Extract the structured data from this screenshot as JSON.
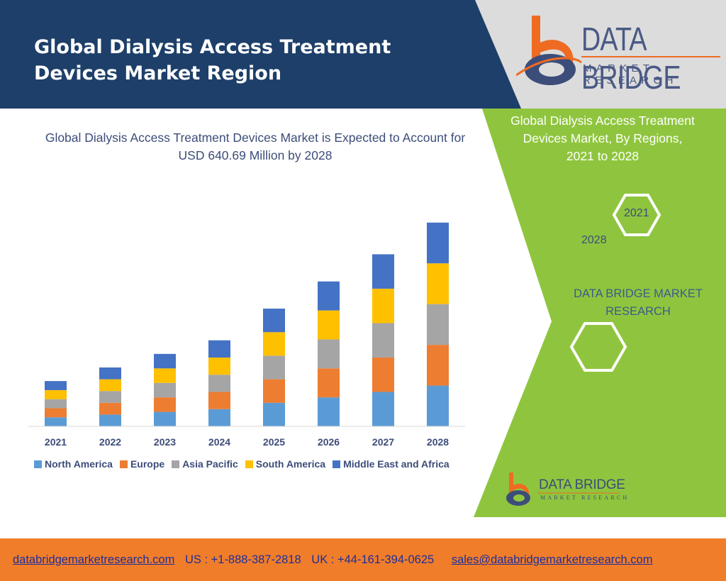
{
  "header": {
    "title_line1": "Global Dialysis Access Treatment",
    "title_line2": "Devices Market Region",
    "brand_name": "DATA BRIDGE",
    "brand_tagline": "MARKET RESEARCH"
  },
  "colors": {
    "header_navy": "#1d3f69",
    "panel_green": "#8fc53e",
    "footer_orange": "#f07d2a",
    "brand_orange": "#ef6b22",
    "brand_navy": "#3d4d7a"
  },
  "chart_data": {
    "type": "bar",
    "stacked": true,
    "title": "Global Dialysis Access Treatment Devices Market is Expected to Account for USD 640.69 Million by 2028",
    "xlabel": "",
    "ylabel": "",
    "grid": false,
    "legend_position": "bottom",
    "categories": [
      "2021",
      "2022",
      "2023",
      "2024",
      "2025",
      "2026",
      "2027",
      "2028"
    ],
    "series": [
      {
        "name": "North America",
        "color": "#5b9bd5",
        "values": [
          1.0,
          1.3,
          1.6,
          1.9,
          2.6,
          3.2,
          3.8,
          4.5
        ]
      },
      {
        "name": "Europe",
        "color": "#ed7d31",
        "values": [
          1.0,
          1.3,
          1.6,
          1.9,
          2.6,
          3.2,
          3.8,
          4.5
        ]
      },
      {
        "name": "Asia Pacific",
        "color": "#a5a5a5",
        "values": [
          1.0,
          1.3,
          1.6,
          1.9,
          2.6,
          3.2,
          3.8,
          4.5
        ]
      },
      {
        "name": "South America",
        "color": "#ffc000",
        "values": [
          1.0,
          1.3,
          1.6,
          1.9,
          2.6,
          3.2,
          3.8,
          4.5
        ]
      },
      {
        "name": "Middle East and Africa",
        "color": "#4472c4",
        "values": [
          1.0,
          1.3,
          1.6,
          1.9,
          2.6,
          3.2,
          3.8,
          4.5
        ]
      }
    ],
    "ylim": [
      0,
      23.5
    ]
  },
  "side_panel": {
    "title_line1": "Global Dialysis Access Treatment",
    "title_line2": "Devices Market, By Regions,",
    "title_line3": "2021 to 2028",
    "hex_start": "2021",
    "hex_end": "2028",
    "brand_line1": "DATA BRIDGE MARKET",
    "brand_line2": "RESEARCH",
    "logo_name": "DATA BRIDGE",
    "logo_tagline": "MARKET RESEARCH"
  },
  "footer": {
    "website": "databridgemarketresearch.com",
    "us_phone": "US : +1-888-387-2818",
    "uk_phone": "UK : +44-161-394-0625",
    "email": "sales@databridgemarketresearch.com"
  }
}
